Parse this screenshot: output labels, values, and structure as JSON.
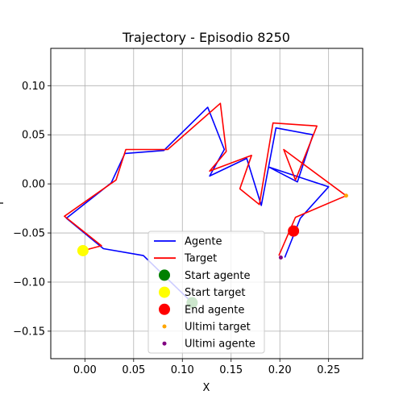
{
  "chart_data": {
    "type": "line",
    "title": "Trajectory - Episodio 8250",
    "xlabel": "X",
    "ylabel": "Y",
    "xlim": [
      -0.035,
      0.285
    ],
    "ylim": [
      -0.178,
      0.138
    ],
    "xticks": [
      0.0,
      0.05,
      0.1,
      0.15,
      0.2,
      0.25
    ],
    "xtick_labels": [
      "0.00",
      "0.05",
      "0.10",
      "0.15",
      "0.20",
      "0.25"
    ],
    "yticks": [
      -0.15,
      -0.1,
      -0.05,
      0.0,
      0.05,
      0.1
    ],
    "ytick_labels": [
      "−0.15",
      "−0.10",
      "−0.05",
      "0.00",
      "0.05",
      "0.10"
    ],
    "grid": true,
    "legend_position": "bottom-center",
    "series": [
      {
        "name": "Agente",
        "color": "#0000ff",
        "x": [
          0.11,
          0.06,
          0.019,
          -0.019,
          0.027,
          0.041,
          0.081,
          0.126,
          0.143,
          0.128,
          0.166,
          0.181,
          0.196,
          0.234,
          0.218,
          0.189,
          0.25,
          0.221,
          0.205
        ],
        "y": [
          -0.121,
          -0.073,
          -0.066,
          -0.035,
          0.001,
          0.031,
          0.034,
          0.078,
          0.035,
          0.008,
          0.026,
          -0.022,
          0.057,
          0.05,
          0.002,
          0.017,
          -0.003,
          -0.035,
          -0.075
        ]
      },
      {
        "name": "Target",
        "color": "#ff0000",
        "x": [
          -0.002,
          0.017,
          -0.021,
          0.032,
          0.042,
          0.085,
          0.139,
          0.145,
          0.128,
          0.171,
          0.159,
          0.179,
          0.193,
          0.238,
          0.216,
          0.204,
          0.268,
          0.216,
          0.199
        ],
        "y": [
          -0.068,
          -0.063,
          -0.033,
          0.004,
          0.035,
          0.035,
          0.082,
          0.033,
          0.013,
          0.029,
          -0.005,
          -0.021,
          0.062,
          0.059,
          0.004,
          0.035,
          -0.012,
          -0.034,
          -0.073
        ]
      }
    ],
    "markers": [
      {
        "name": "Start agente",
        "color": "#008000",
        "x": 0.11,
        "y": -0.121,
        "kind": "large"
      },
      {
        "name": "Start target",
        "color": "#ffff00",
        "x": -0.002,
        "y": -0.068,
        "kind": "large"
      },
      {
        "name": "End agente",
        "color": "#ff0000",
        "x": 0.214,
        "y": -0.048,
        "kind": "large"
      },
      {
        "name": "Ultimi target",
        "color": "#ffa500",
        "x": 0.268,
        "y": -0.012,
        "kind": "small"
      },
      {
        "name": "Ultimi agente",
        "color": "#800080",
        "x": 0.201,
        "y": -0.075,
        "kind": "small"
      }
    ]
  }
}
